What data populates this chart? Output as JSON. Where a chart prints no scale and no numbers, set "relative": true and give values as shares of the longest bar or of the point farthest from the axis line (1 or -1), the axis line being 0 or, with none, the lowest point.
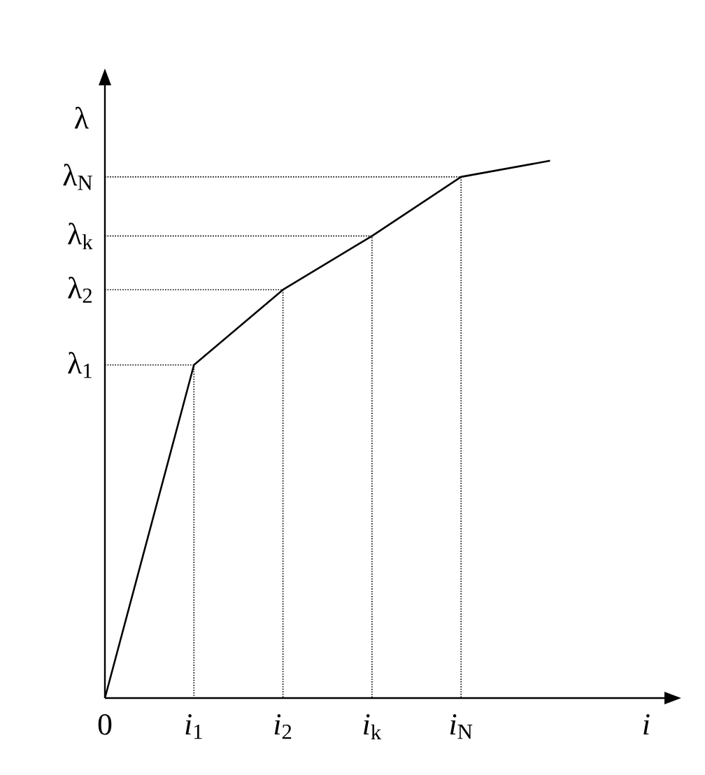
{
  "chart_data": {
    "type": "line",
    "relative": true,
    "line_style": "solid",
    "color": "#000000",
    "xlabel": "*i*",
    "ylabel": "λ",
    "categories": [
      "0",
      "*i*$_{1}$",
      "*i*$_{2}$",
      "*i*$_{k}$",
      "*i*$_{N}$",
      null
    ],
    "values": [
      0,
      0.62,
      0.76,
      0.86,
      0.97,
      1
    ],
    "ref_lines": [
      {
        "axis": "y",
        "value": 0.62,
        "label": "λ$_{1}$",
        "line_style": "dotted"
      },
      {
        "axis": "y",
        "value": 0.76,
        "label": "λ$_{2}$",
        "line_style": "dotted"
      },
      {
        "axis": "y",
        "value": 0.86,
        "label": "λ$_{k}$",
        "line_style": "dotted"
      },
      {
        "axis": "y",
        "value": 0.97,
        "label": "λ$_{N}$",
        "line_style": "dotted"
      }
    ]
  }
}
